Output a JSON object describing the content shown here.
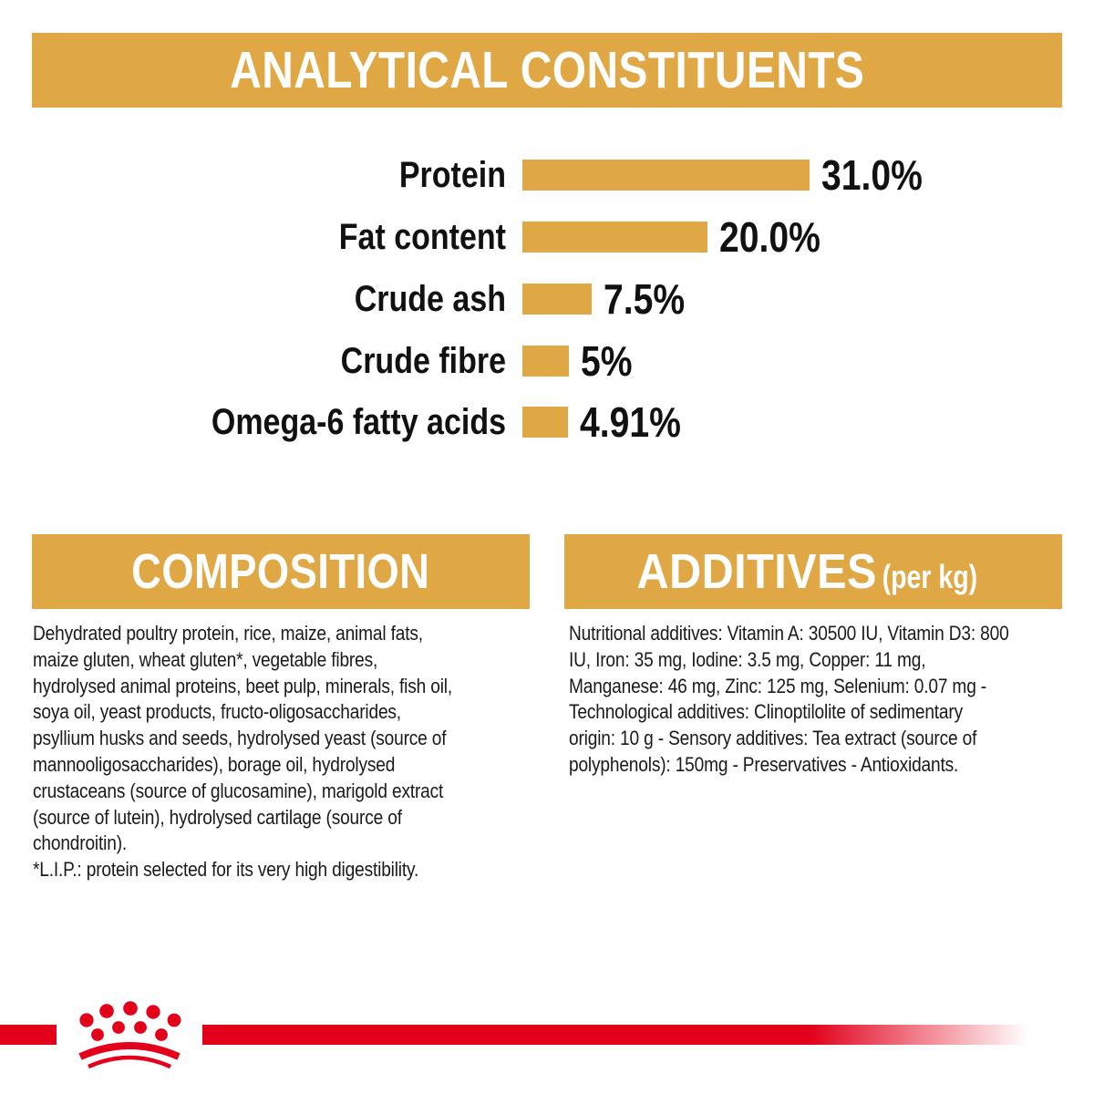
{
  "page": {
    "background": "#ffffff",
    "accent_gold": "#dfa845",
    "accent_red": "#e2001a",
    "text_color": "#1a1a1a"
  },
  "header": {
    "title": "ANALYTICAL CONSTITUENTS"
  },
  "chart_data": {
    "type": "bar",
    "orientation": "horizontal",
    "title": "ANALYTICAL CONSTITUENTS",
    "categories": [
      "Protein",
      "Fat content",
      "Crude ash",
      "Crude fibre",
      "Omega-6 fatty acids"
    ],
    "values": [
      31.0,
      20.0,
      7.5,
      5,
      4.91
    ],
    "value_labels": [
      "31.0%",
      "20.0%",
      "7.5%",
      "5%",
      "4.91%"
    ],
    "unit": "%",
    "xlim": [
      0,
      31
    ],
    "grid": false,
    "legend": false,
    "bar_color": "#dfa845"
  },
  "composition": {
    "title": "COMPOSITION",
    "lines": [
      "Dehydrated poultry protein, rice, maize, animal fats,",
      "maize gluten, wheat gluten*, vegetable fibres,",
      "hydrolysed animal proteins, beet pulp, minerals, fish oil,",
      "soya oil, yeast products, fructo-oligosaccharides,",
      "psyllium husks and seeds, hydrolysed yeast (source of",
      "mannooligosaccharides), borage oil, hydrolysed",
      "crustaceans (source of glucosamine), marigold extract",
      "(source of lutein), hydrolysed cartilage (source of",
      "chondroitin).",
      "*L.I.P.: protein selected for its very high digestibility."
    ]
  },
  "additives": {
    "title": "ADDITIVES",
    "title_suffix": "(per kg)",
    "lines": [
      "Nutritional additives: Vitamin A: 30500 IU, Vitamin D3: 800",
      "IU, Iron: 35 mg, Iodine: 3.5 mg, Copper: 11 mg,",
      "Manganese: 46 mg, Zinc: 125 mg, Selenium: 0.07 mg -",
      "Technological additives: Clinoptilolite of sedimentary",
      "origin: 10 g - Sensory additives: Tea extract (source of",
      "polyphenols): 150mg - Preservatives - Antioxidants."
    ]
  },
  "footer": {
    "logo_icon": "royal-canin-crown-logo",
    "stripe_color": "#e2001a"
  }
}
